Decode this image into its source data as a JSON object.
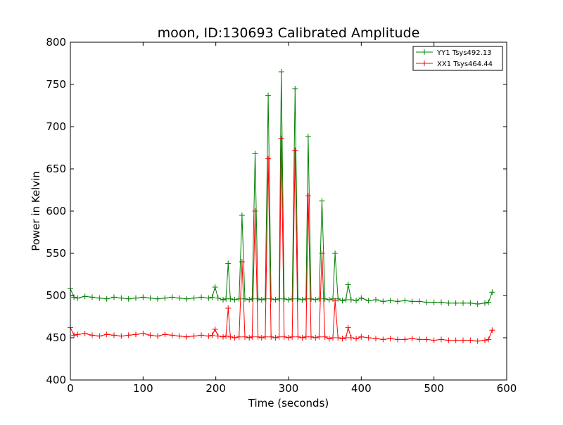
{
  "chart_data": {
    "type": "line",
    "title": "moon, ID:130693 Calibrated Amplitude",
    "xlabel": "Time (seconds)",
    "ylabel": "Power in Kelvin",
    "xlim": [
      0,
      600
    ],
    "ylim": [
      400,
      800
    ],
    "xticks": [
      "0",
      "100",
      "200",
      "300",
      "400",
      "500",
      "600"
    ],
    "yticks": [
      "400",
      "450",
      "500",
      "550",
      "600",
      "650",
      "700",
      "750",
      "800"
    ],
    "grid": false,
    "legend_position": "top-right",
    "marker": "plus",
    "series": [
      {
        "name": "YY1 Tsys492.13",
        "color": "#008000",
        "x": [
          0,
          5,
          10,
          20,
          30,
          40,
          50,
          60,
          70,
          80,
          90,
          100,
          110,
          120,
          130,
          140,
          150,
          160,
          170,
          180,
          190,
          195,
          199,
          203,
          210,
          214,
          217,
          220,
          226,
          232,
          236,
          240,
          246,
          250,
          254,
          258,
          263,
          268,
          272,
          276,
          282,
          287,
          290,
          294,
          300,
          305,
          309,
          313,
          319,
          324,
          327,
          331,
          337,
          342,
          346,
          350,
          356,
          361,
          364,
          368,
          374,
          379,
          382,
          386,
          393,
          400,
          410,
          420,
          430,
          440,
          450,
          460,
          470,
          480,
          490,
          500,
          510,
          520,
          530,
          540,
          550,
          560,
          570,
          575,
          580
        ],
        "values": [
          508,
          498,
          497,
          499,
          498,
          497,
          496,
          498,
          497,
          496,
          497,
          498,
          497,
          496,
          497,
          498,
          497,
          496,
          497,
          498,
          497,
          498,
          510,
          497,
          495,
          496,
          538,
          496,
          495,
          496,
          595,
          496,
          495,
          496,
          668,
          496,
          495,
          496,
          737,
          496,
          495,
          496,
          765,
          496,
          495,
          496,
          745,
          496,
          495,
          496,
          688,
          496,
          495,
          496,
          612,
          496,
          495,
          496,
          550,
          496,
          494,
          495,
          513,
          495,
          494,
          497,
          494,
          495,
          493,
          494,
          493,
          494,
          493,
          493,
          492,
          492,
          492,
          491,
          491,
          491,
          491,
          490,
          491,
          492,
          504
        ]
      },
      {
        "name": "XX1 Tsys464.44",
        "color": "#ff0000",
        "x": [
          0,
          5,
          10,
          20,
          30,
          40,
          50,
          60,
          70,
          80,
          90,
          100,
          110,
          120,
          130,
          140,
          150,
          160,
          170,
          180,
          190,
          195,
          199,
          203,
          210,
          214,
          217,
          220,
          226,
          232,
          236,
          240,
          246,
          250,
          254,
          258,
          263,
          268,
          272,
          276,
          282,
          287,
          290,
          294,
          300,
          305,
          309,
          313,
          319,
          324,
          327,
          331,
          337,
          342,
          346,
          350,
          356,
          361,
          364,
          368,
          374,
          379,
          382,
          386,
          393,
          400,
          410,
          420,
          430,
          440,
          450,
          460,
          470,
          480,
          490,
          500,
          510,
          520,
          530,
          540,
          550,
          560,
          570,
          575,
          580
        ],
        "values": [
          462,
          453,
          454,
          455,
          453,
          452,
          454,
          453,
          452,
          453,
          454,
          455,
          453,
          452,
          454,
          453,
          452,
          451,
          452,
          453,
          452,
          453,
          460,
          452,
          451,
          452,
          485,
          451,
          450,
          451,
          540,
          451,
          450,
          451,
          600,
          451,
          450,
          451,
          662,
          451,
          450,
          451,
          686,
          451,
          450,
          451,
          672,
          451,
          450,
          451,
          618,
          451,
          450,
          451,
          550,
          451,
          449,
          450,
          494,
          450,
          449,
          450,
          462,
          450,
          449,
          451,
          450,
          449,
          448,
          449,
          448,
          448,
          449,
          448,
          448,
          447,
          448,
          447,
          447,
          447,
          447,
          446,
          447,
          448,
          459
        ]
      }
    ]
  }
}
